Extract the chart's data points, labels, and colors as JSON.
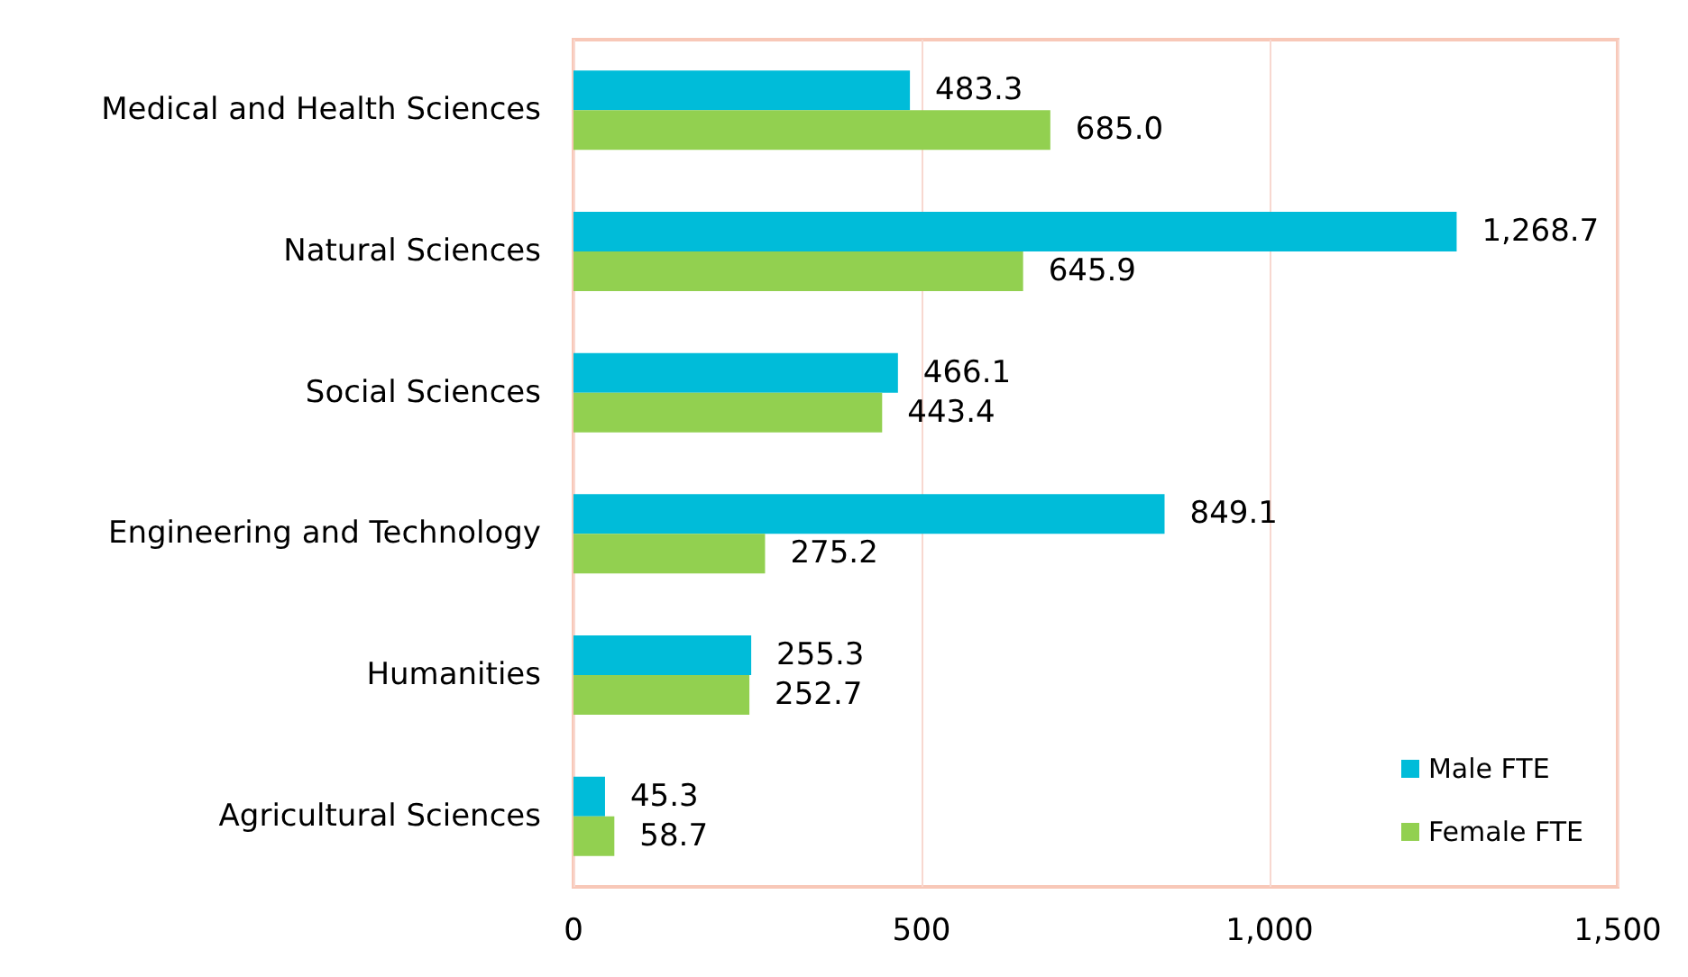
{
  "chart_data": {
    "type": "bar",
    "orientation": "horizontal",
    "categories": [
      "Medical and Health Sciences",
      "Natural Sciences",
      "Social Sciences",
      "Engineering and Technology",
      "Humanities",
      "Agricultural Sciences"
    ],
    "series": [
      {
        "name": "Male FTE",
        "color": "#00bcd9",
        "values": [
          483.3,
          1268.7,
          466.1,
          849.1,
          255.3,
          45.3
        ],
        "value_labels": [
          "483.3",
          "1,268.7",
          "466.1",
          "849.1",
          "255.3",
          "45.3"
        ]
      },
      {
        "name": "Female FTE",
        "color": "#92d050",
        "values": [
          685.0,
          645.9,
          443.4,
          275.2,
          252.7,
          58.7
        ],
        "value_labels": [
          "685.0",
          "645.9",
          "443.4",
          "275.2",
          "252.7",
          "58.7"
        ]
      }
    ],
    "xlim": [
      0,
      1500
    ],
    "xticks": [
      0,
      {
        "value": 500,
        "label": "500"
      },
      {
        "value": 1000,
        "label": "1,000"
      },
      {
        "value": 1500,
        "label": "1,500"
      }
    ],
    "grid": "x",
    "legend": "bottom right"
  }
}
